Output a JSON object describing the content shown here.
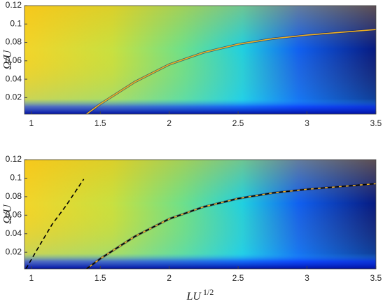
{
  "chart_data": [
    {
      "type": "line",
      "ylabel": "Ω/U",
      "xlim": [
        0.95,
        3.5
      ],
      "xticks": [
        1,
        1.5,
        2,
        2.5,
        3,
        3.5
      ],
      "ylim": [
        0.002,
        0.12
      ],
      "yticks": [
        0.02,
        0.04,
        0.06,
        0.08,
        0.1,
        0.12
      ],
      "series": [
        {
          "color": "#f0b020",
          "linestyle": "solid",
          "x": [
            1.4,
            1.5,
            1.75,
            2,
            2.25,
            2.5,
            2.75,
            3,
            3.25,
            3.5
          ],
          "values": [
            0.002,
            0.013,
            0.037,
            0.056,
            0.069,
            0.078,
            0.084,
            0.088,
            0.091,
            0.094
          ]
        }
      ]
    },
    {
      "type": "line",
      "ylabel": "Ω/U",
      "xlabel": "LU",
      "xlabel_superscript": "1/2",
      "xlim": [
        0.95,
        3.5
      ],
      "xticks": [
        1,
        1.5,
        2,
        2.5,
        3,
        3.5
      ],
      "ylim": [
        0.002,
        0.12
      ],
      "yticks": [
        0.02,
        0.04,
        0.06,
        0.08,
        0.1,
        0.12
      ],
      "series": [
        {
          "color": "#f0b020",
          "linestyle": "solid",
          "x": [
            1.4,
            1.5,
            1.75,
            2,
            2.25,
            2.5,
            2.75,
            3,
            3.25,
            3.5
          ],
          "values": [
            0.002,
            0.013,
            0.037,
            0.056,
            0.069,
            0.078,
            0.084,
            0.088,
            0.091,
            0.094
          ]
        },
        {
          "color": "#000000",
          "linestyle": "dashed",
          "x": [
            1.4,
            1.5,
            1.75,
            2,
            2.25,
            2.5,
            2.75,
            3,
            3.25,
            3.5
          ],
          "values": [
            0.002,
            0.013,
            0.037,
            0.056,
            0.069,
            0.078,
            0.084,
            0.088,
            0.091,
            0.094
          ]
        },
        {
          "color": "#000000",
          "linestyle": "dashed",
          "x": [
            0.96,
            1.05,
            1.15,
            1.25,
            1.38
          ],
          "values": [
            0.002,
            0.025,
            0.05,
            0.07,
            0.099
          ]
        }
      ]
    }
  ]
}
